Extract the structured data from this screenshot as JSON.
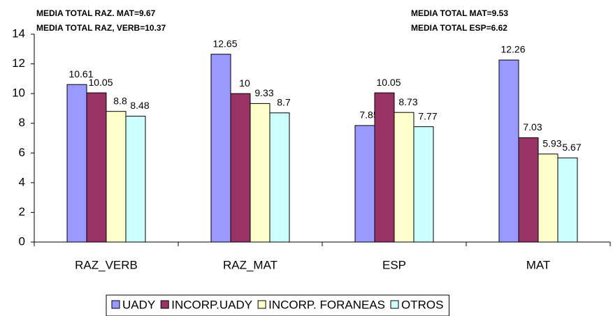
{
  "chart_data": {
    "type": "bar",
    "annotations": [
      "MEDIA TOTAL RAZ. MAT=9.67",
      "MEDIA TOTAL RAZ, VERB=10.37",
      "MEDIA TOTAL MAT=9.53",
      "MEDIA TOTAL ESP=6.62"
    ],
    "categories": [
      "RAZ_VERB",
      "RAZ_MAT",
      "ESP",
      "MAT"
    ],
    "series": [
      {
        "name": "UADY",
        "color": "#9999ff",
        "values": [
          10.61,
          12.65,
          7.85,
          12.26
        ]
      },
      {
        "name": "INCORP.UADY",
        "color": "#993366",
        "values": [
          10.05,
          10,
          10.05,
          7.03
        ]
      },
      {
        "name": "INCORP. FORANEAS",
        "color": "#ffffcc",
        "values": [
          8.8,
          9.33,
          8.73,
          5.93
        ]
      },
      {
        "name": "OTROS",
        "color": "#ccffff",
        "values": [
          8.48,
          8.7,
          7.77,
          5.67
        ]
      }
    ],
    "ylim": [
      0,
      14
    ],
    "yticks": [
      0,
      2,
      4,
      6,
      8,
      10,
      12,
      14
    ],
    "legend": "bottom"
  }
}
